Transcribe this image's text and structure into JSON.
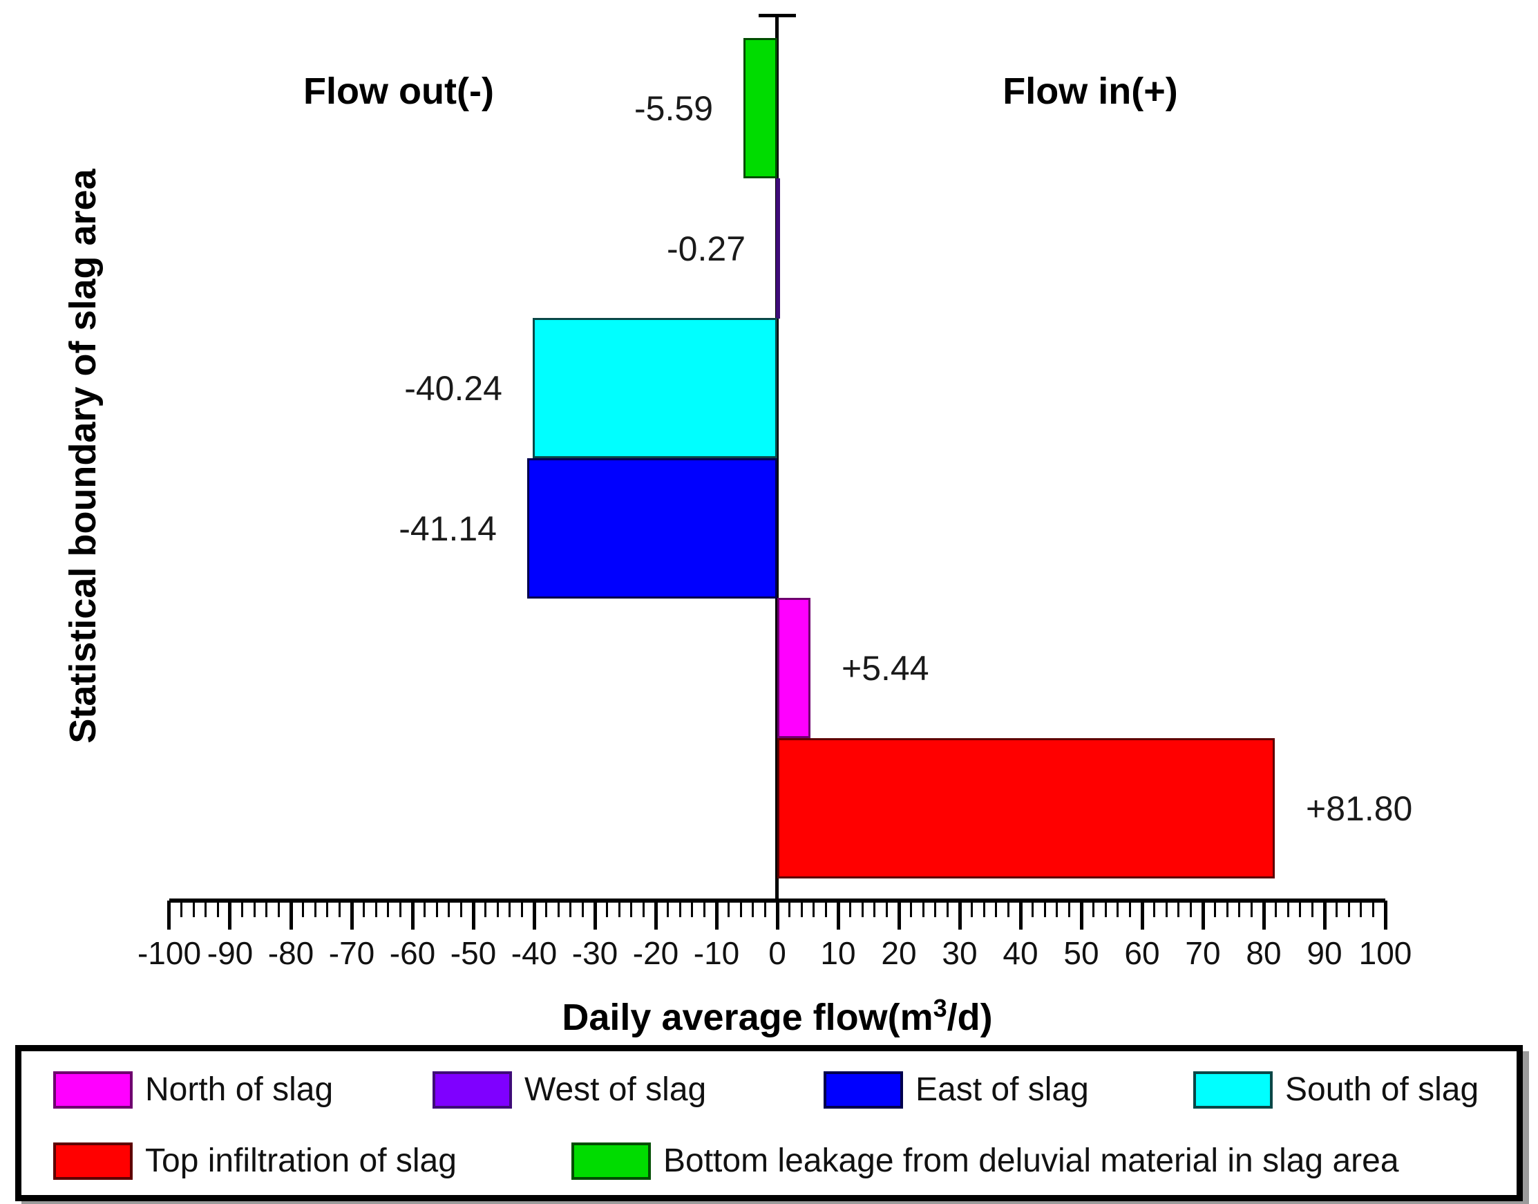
{
  "figure": {
    "flow_out_label": "Flow out(-)",
    "flow_in_label": "Flow in(+)"
  },
  "chart_data": {
    "type": "bar",
    "orientation": "horizontal",
    "title": "",
    "xlabel": {
      "pre": "Daily average flow(m",
      "sup": "3",
      "post": "/d)"
    },
    "ylabel": "Statistical boundary of slag area",
    "xlim": [
      -100,
      100
    ],
    "x_major_step": 10,
    "x_minor_step": 2,
    "grid": false,
    "legend_position": "bottom-box",
    "annotations": [
      "Flow out(-)",
      "Flow in(+)"
    ],
    "series": [
      {
        "id": "bottom_leakage",
        "label": "Bottom leakage from deluvial material in slag area",
        "value": -5.59,
        "value_label": "-5.59",
        "color": "#00DC00",
        "border": "#004d00"
      },
      {
        "id": "west",
        "label": "West of slag",
        "value": -0.27,
        "value_label": "-0.27",
        "color": "#7F00FF",
        "border": "#3f0c78"
      },
      {
        "id": "south",
        "label": "South of slag",
        "value": -40.24,
        "value_label": "-40.24",
        "color": "#00FFFF",
        "border": "#0a4747"
      },
      {
        "id": "east",
        "label": "East of slag",
        "value": -41.14,
        "value_label": "-41.14",
        "color": "#0000FF",
        "border": "#00004d"
      },
      {
        "id": "north",
        "label": "North of slag",
        "value": 5.44,
        "value_label": "+5.44",
        "color": "#FF00FF",
        "border": "#6e006e"
      },
      {
        "id": "top_infiltration",
        "label": "Top infiltration of slag",
        "value": 81.8,
        "value_label": "+81.80",
        "color": "#FF0000",
        "border": "#5e0000"
      }
    ],
    "legend_rows": [
      [
        "north",
        "west",
        "east",
        "south"
      ],
      [
        "top_infiltration",
        "bottom_leakage"
      ]
    ]
  }
}
